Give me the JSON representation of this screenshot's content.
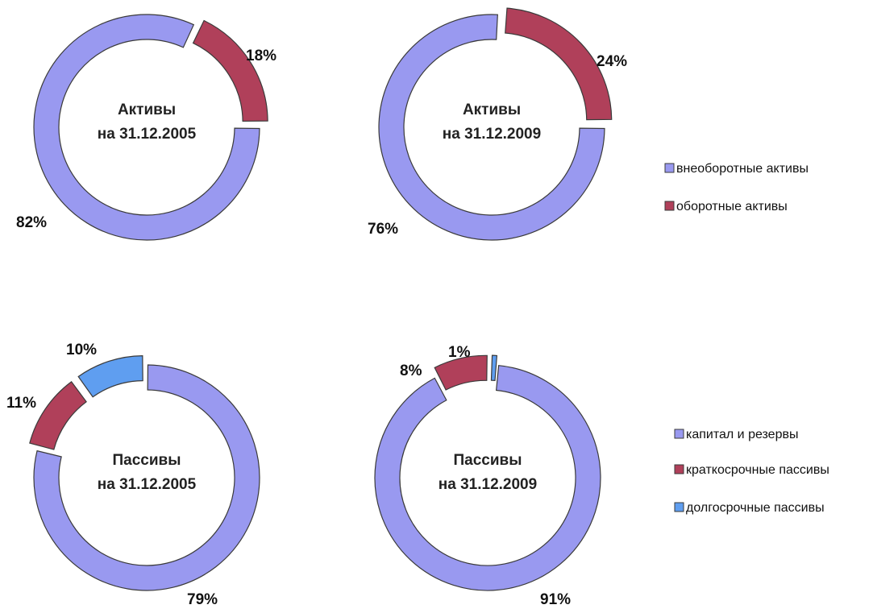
{
  "colors": {
    "purple": "#9999f0",
    "red": "#b0405a",
    "blue": "#5f9ef0",
    "outline": "#3a3a3a"
  },
  "legends": [
    {
      "items": [
        {
          "label": "внеоборотные активы",
          "color": "#9999f0"
        },
        {
          "label": "оборотные активы",
          "color": "#b0405a"
        }
      ]
    },
    {
      "items": [
        {
          "label": "капитал и резервы",
          "color": "#9999f0"
        },
        {
          "label": "краткосрочные пассивы",
          "color": "#b0405a"
        },
        {
          "label": "долгосрочные пассивы",
          "color": "#5f9ef0"
        }
      ]
    }
  ],
  "chart_data": [
    {
      "type": "pie",
      "style": "donut",
      "center_label": [
        "Активы",
        "на 31.12.2005"
      ],
      "categories": [
        "внеоборотные активы",
        "оборотные активы"
      ],
      "values": [
        82,
        18
      ],
      "labels": [
        "82%",
        "18%"
      ],
      "colors": [
        "#9999f0",
        "#b0405a"
      ],
      "exploded": [
        false,
        true
      ]
    },
    {
      "type": "pie",
      "style": "donut",
      "center_label": [
        "Активы",
        "на 31.12.2009"
      ],
      "categories": [
        "внеоборотные активы",
        "оборотные активы"
      ],
      "values": [
        76,
        24
      ],
      "labels": [
        "76%",
        "24%"
      ],
      "colors": [
        "#9999f0",
        "#b0405a"
      ],
      "exploded": [
        false,
        true
      ]
    },
    {
      "type": "pie",
      "style": "donut",
      "center_label": [
        "Пассивы",
        "на 31.12.2005"
      ],
      "categories": [
        "капитал и резервы",
        "краткосрочные пассивы",
        "долгосрочные пассивы"
      ],
      "values": [
        79,
        11,
        10
      ],
      "labels": [
        "79%",
        "11%",
        "10%"
      ],
      "colors": [
        "#9999f0",
        "#b0405a",
        "#5f9ef0"
      ],
      "exploded": [
        false,
        true,
        true
      ]
    },
    {
      "type": "pie",
      "style": "donut",
      "center_label": [
        "Пассивы",
        "на 31.12.2009"
      ],
      "categories": [
        "капитал и резервы",
        "краткосрочные пассивы",
        "долгосрочные пассивы"
      ],
      "values": [
        91,
        8,
        1
      ],
      "labels": [
        "91%",
        "8%",
        "1%"
      ],
      "colors": [
        "#9999f0",
        "#b0405a",
        "#5f9ef0"
      ],
      "exploded": [
        false,
        true,
        true
      ]
    }
  ]
}
